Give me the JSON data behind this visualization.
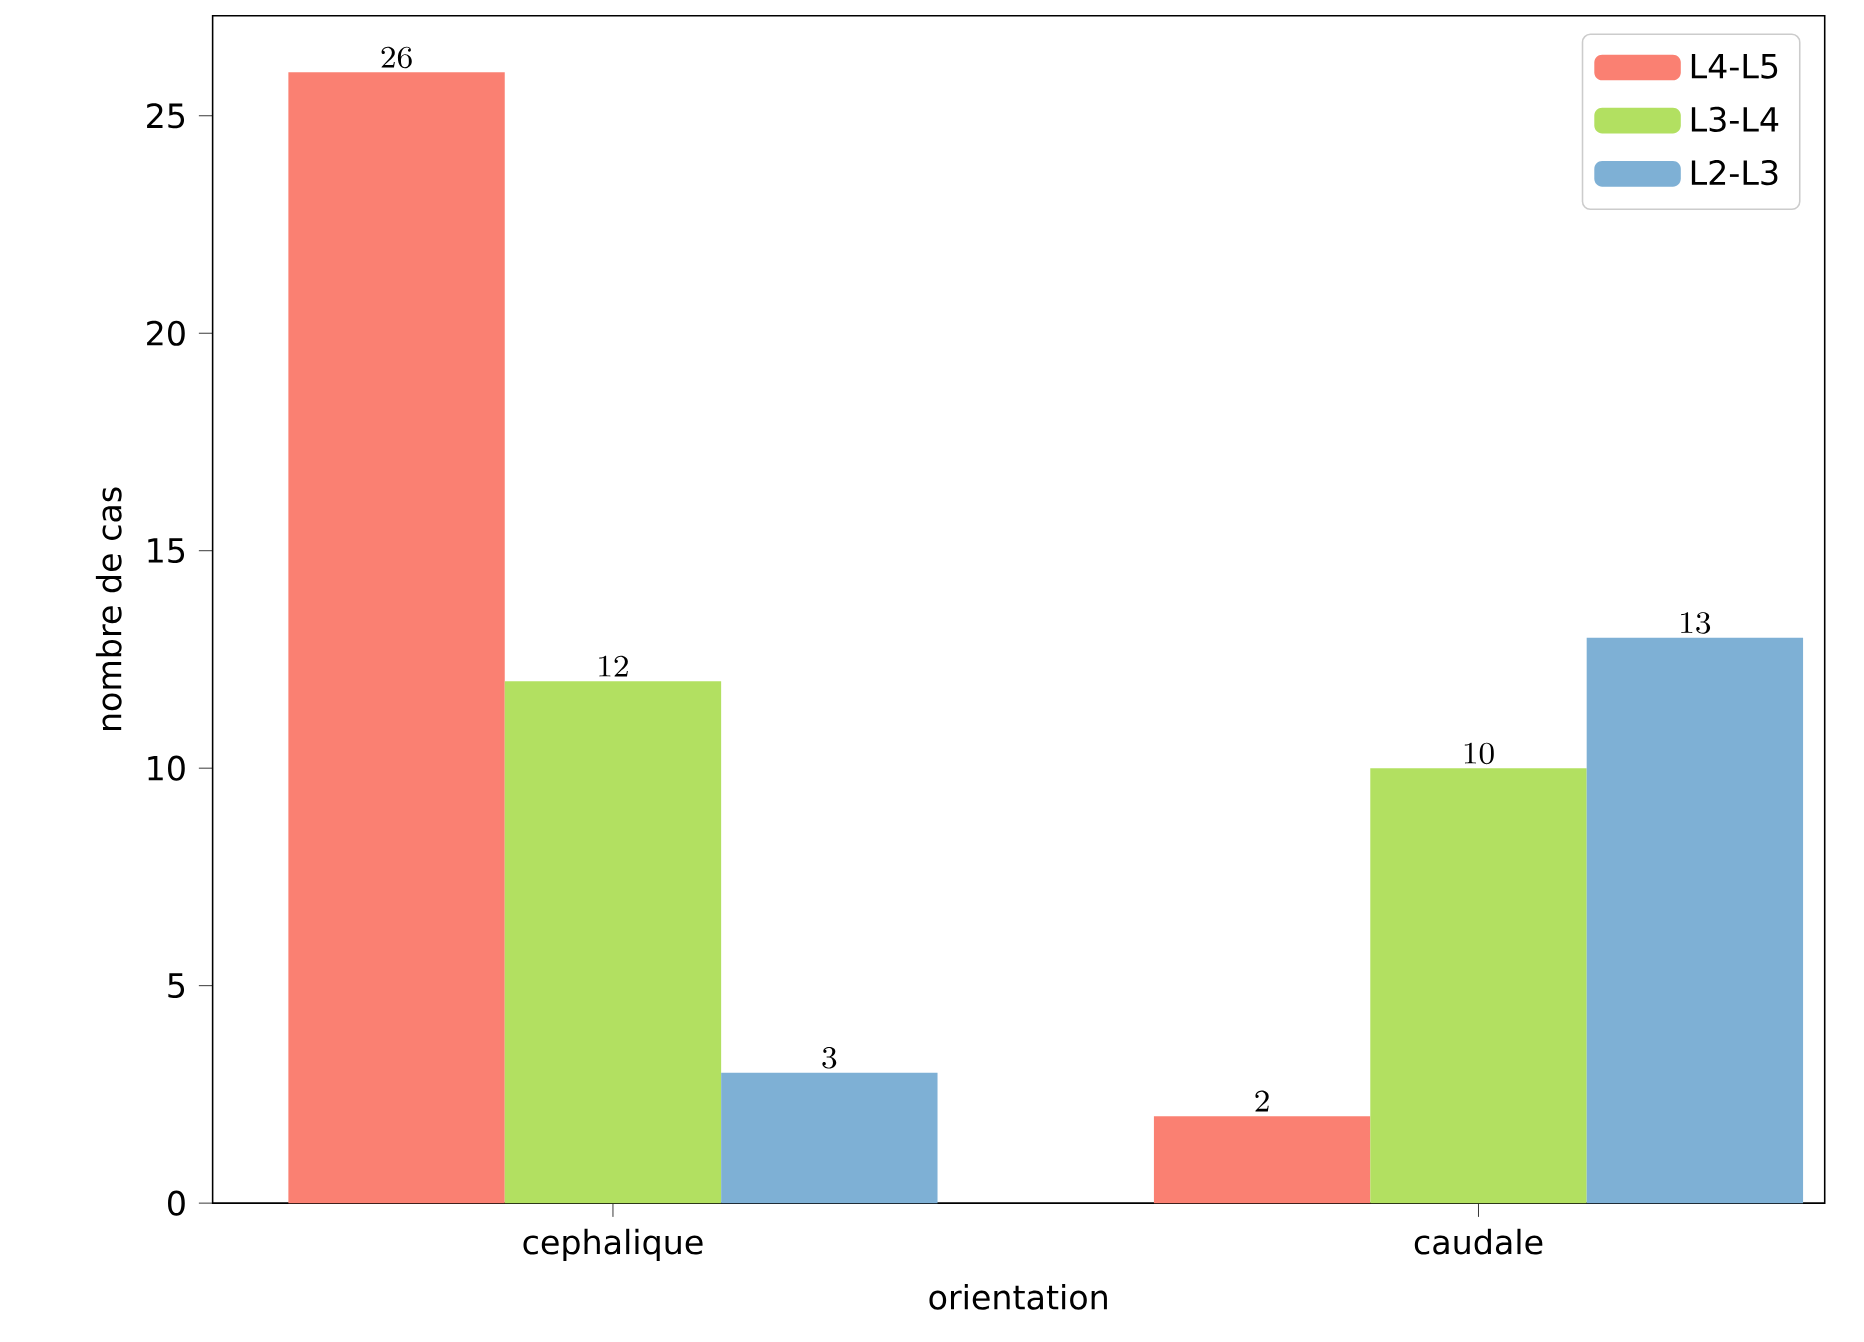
{
  "chart_data": {
    "type": "bar",
    "xlabel": "orientation",
    "ylabel": "nombre de cas",
    "categories": [
      "cephalique",
      "caudale"
    ],
    "series": [
      {
        "name": "L4-L5",
        "color": "#fa8072",
        "values": [
          26,
          2
        ]
      },
      {
        "name": "L3-L4",
        "color": "#b2e061",
        "values": [
          12,
          10
        ]
      },
      {
        "name": "L2-L3",
        "color": "#7eb0d5",
        "values": [
          3,
          13
        ]
      }
    ],
    "ylim": [
      0,
      27.3
    ],
    "yticks": [
      0,
      5,
      10,
      15,
      20,
      25
    ],
    "data_labels": true,
    "legend": "top right"
  }
}
